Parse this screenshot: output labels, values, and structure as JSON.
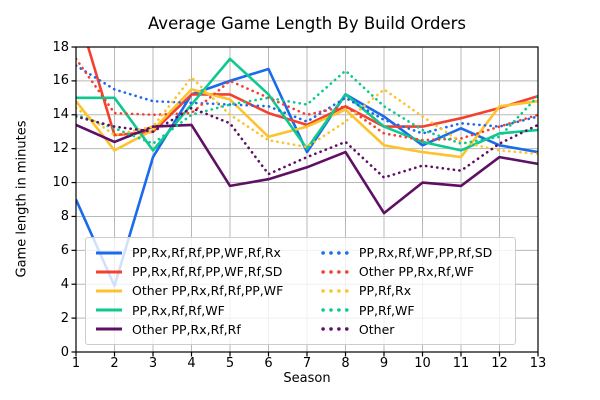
{
  "chart_data": {
    "type": "line",
    "title": "Average Game Length By Build Orders",
    "xlabel": "Season",
    "ylabel": "Game length in minutes",
    "x": [
      1,
      2,
      3,
      4,
      5,
      6,
      7,
      8,
      9,
      10,
      11,
      12,
      13
    ],
    "x_ticks": [
      1,
      2,
      3,
      4,
      5,
      6,
      7,
      8,
      9,
      10,
      11,
      12,
      13
    ],
    "y_ticks": [
      0,
      2,
      4,
      6,
      8,
      10,
      12,
      14,
      16,
      18
    ],
    "xlim": [
      1,
      13
    ],
    "ylim": [
      0,
      18
    ],
    "grid": true,
    "legend_position": "lower center, 2 columns",
    "series": [
      {
        "name": "PP,Rx,Rf,Rf,PP,WF,Rf,Rx",
        "style": "solid",
        "color": "#1b6aeb",
        "values": [
          9.0,
          3.9,
          11.5,
          15.2,
          16.0,
          16.7,
          11.8,
          15.2,
          13.9,
          12.2,
          13.2,
          12.2,
          11.8
        ]
      },
      {
        "name": "PP,Rx,Rf,Rf,PP,WF,Rf,SD",
        "style": "solid",
        "color": "#f4402f",
        "values": [
          20.4,
          12.8,
          13.0,
          15.2,
          15.2,
          14.1,
          13.4,
          14.5,
          13.3,
          13.3,
          13.8,
          14.4,
          15.1
        ]
      },
      {
        "name": "Other PP,Rx,Rf,Rf,PP,WF",
        "style": "solid",
        "color": "#fcc32c",
        "values": [
          14.8,
          11.9,
          13.1,
          15.5,
          14.9,
          12.7,
          13.3,
          14.3,
          12.2,
          11.8,
          11.5,
          14.5,
          14.8
        ]
      },
      {
        "name": "PP,Rx,Rf,Rf,WF",
        "style": "solid",
        "color": "#0ec98f",
        "values": [
          15.0,
          15.0,
          11.9,
          14.6,
          17.3,
          15.2,
          12.0,
          15.2,
          13.3,
          12.4,
          11.9,
          12.9,
          13.1
        ]
      },
      {
        "name": "Other PP,Rx,Rf,Rf",
        "style": "solid",
        "color": "#5e1064",
        "values": [
          13.4,
          12.4,
          13.3,
          13.4,
          9.8,
          10.2,
          10.9,
          11.8,
          8.2,
          10.0,
          9.8,
          11.5,
          11.1
        ]
      },
      {
        "name": "PP,Rx,Rf,WF,PP,Rf,SD",
        "style": "dotted",
        "color": "#1b6aeb",
        "values": [
          16.9,
          15.5,
          14.8,
          14.7,
          14.6,
          14.5,
          13.6,
          15.0,
          13.7,
          12.9,
          13.5,
          13.3,
          13.9
        ]
      },
      {
        "name": "Other PP,Rx,Rf,WF",
        "style": "dotted",
        "color": "#f4402f",
        "values": [
          17.3,
          14.1,
          14.0,
          14.1,
          16.0,
          15.0,
          14.0,
          14.5,
          12.9,
          12.5,
          12.6,
          13.3,
          14.0
        ]
      },
      {
        "name": "PP,Rf,Rx",
        "style": "dotted",
        "color": "#fcc32c",
        "values": [
          14.4,
          12.8,
          13.3,
          16.2,
          14.0,
          12.5,
          12.1,
          13.6,
          15.5,
          13.9,
          12.4,
          11.9,
          11.7
        ]
      },
      {
        "name": "PP,Rf,WF",
        "style": "dotted",
        "color": "#0ec98f",
        "values": [
          14.0,
          13.2,
          12.3,
          14.0,
          14.6,
          15.0,
          14.6,
          16.6,
          14.5,
          13.1,
          12.3,
          12.7,
          15.1
        ]
      },
      {
        "name": "Other",
        "style": "dotted",
        "color": "#5e1064",
        "values": [
          13.9,
          13.3,
          13.0,
          14.4,
          13.5,
          10.5,
          11.5,
          12.4,
          10.3,
          11.0,
          10.7,
          12.3,
          13.4
        ]
      }
    ],
    "style_hints": {
      "grid_color": "#b8b8b8",
      "spine_color": "#000000",
      "background": "#ffffff"
    }
  }
}
